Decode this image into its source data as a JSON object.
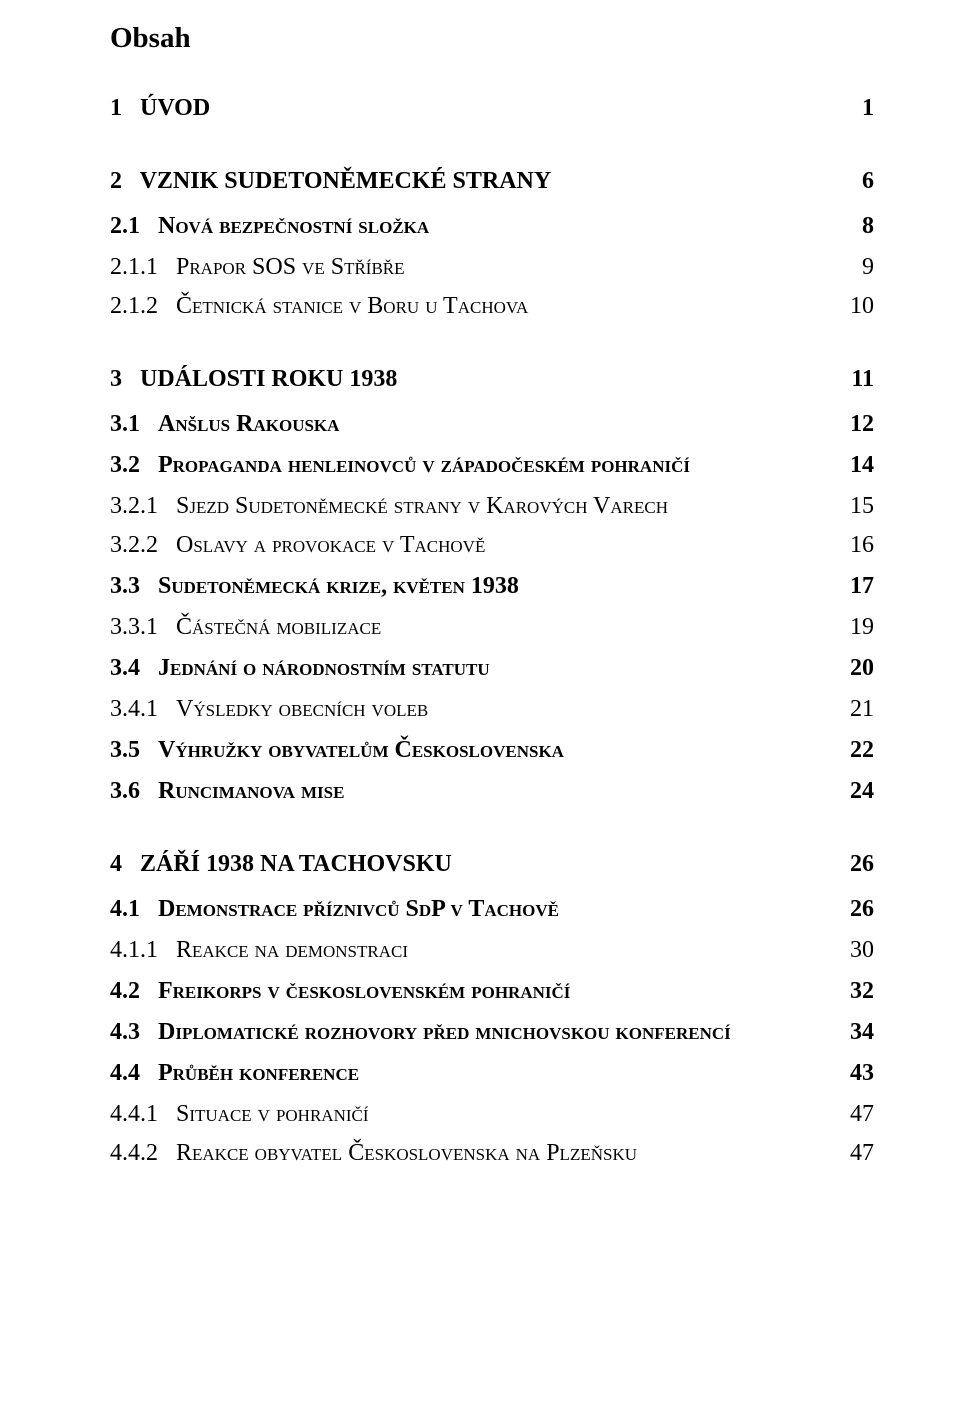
{
  "docTitle": "Obsah",
  "entries": [
    {
      "level": 0,
      "num": "1",
      "title": "ÚVOD",
      "page": "1"
    },
    {
      "level": 0,
      "num": "2",
      "title": "VZNIK SUDETONĚMECKÉ STRANY",
      "page": "6"
    },
    {
      "level": 1,
      "num": "2.1",
      "title": "Nová bezpečnostní složka",
      "page": "8"
    },
    {
      "level": 2,
      "num": "2.1.1",
      "title": "Prapor SOS ve Stříbře",
      "page": "9"
    },
    {
      "level": 2,
      "num": "2.1.2",
      "title": "Četnická stanice v Boru u Tachova",
      "page": "10"
    },
    {
      "level": 0,
      "num": "3",
      "title": "UDÁLOSTI ROKU 1938",
      "page": "11"
    },
    {
      "level": 1,
      "num": "3.1",
      "title": "Anšlus Rakouska",
      "page": "12"
    },
    {
      "level": 1,
      "num": "3.2",
      "title": "Propaganda henleinovců v západočeském pohraničí",
      "page": "14"
    },
    {
      "level": 2,
      "num": "3.2.1",
      "title": "Sjezd Sudetoněmecké strany v Karových Varech",
      "page": "15"
    },
    {
      "level": 2,
      "num": "3.2.2",
      "title": "Oslavy a provokace v Tachově",
      "page": "16"
    },
    {
      "level": 1,
      "num": "3.3",
      "title": "Sudetoněmecká krize, květen 1938",
      "page": "17"
    },
    {
      "level": 2,
      "num": "3.3.1",
      "title": "Částečná mobilizace",
      "page": "19"
    },
    {
      "level": 1,
      "num": "3.4",
      "title": "Jednání o národnostním statutu",
      "page": "20"
    },
    {
      "level": 2,
      "num": "3.4.1",
      "title": "Výsledky obecních voleb",
      "page": "21"
    },
    {
      "level": 1,
      "num": "3.5",
      "title": "Výhružky obyvatelům Československa",
      "page": "22"
    },
    {
      "level": 1,
      "num": "3.6",
      "title": "Runcimanova mise",
      "page": "24"
    },
    {
      "level": 0,
      "num": "4",
      "title": "ZÁŘÍ 1938 NA TACHOVSKU",
      "page": "26"
    },
    {
      "level": 1,
      "num": "4.1",
      "title": "Demonstrace příznivců SdP v Tachově",
      "page": "26"
    },
    {
      "level": 2,
      "num": "4.1.1",
      "title": "Reakce na demonstraci",
      "page": "30"
    },
    {
      "level": 1,
      "num": "4.2",
      "title": "Freikorps v československém pohraničí",
      "page": "32"
    },
    {
      "level": 1,
      "num": "4.3",
      "title": "Diplomatické rozhovory před mnichovskou konferencí",
      "page": "34"
    },
    {
      "level": 1,
      "num": "4.4",
      "title": "Průběh konference",
      "page": "43"
    },
    {
      "level": 2,
      "num": "4.4.1",
      "title": "Situace v pohraničí",
      "page": "47"
    },
    {
      "level": 2,
      "num": "4.4.2",
      "title": "Reakce obyvatel Československa na Plzeňsku",
      "page": "47"
    }
  ],
  "style": {
    "pageWidth": 960,
    "pageHeight": 1405,
    "background": "#ffffff",
    "textColor": "#000000",
    "fontFamily": "Times New Roman, Times, serif",
    "docTitleFontSize": 29,
    "rowFontSize": 24,
    "gapNumTitle": "   "
  }
}
